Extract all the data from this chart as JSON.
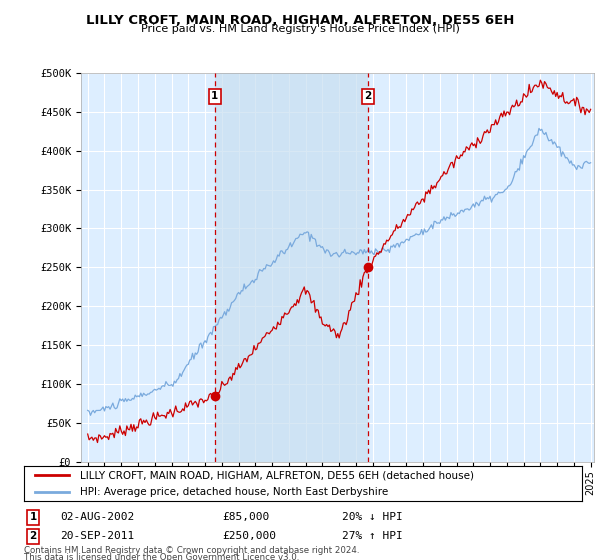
{
  "title": "LILLY CROFT, MAIN ROAD, HIGHAM, ALFRETON, DE55 6EH",
  "subtitle": "Price paid vs. HM Land Registry's House Price Index (HPI)",
  "ylabel_ticks": [
    "£0",
    "£50K",
    "£100K",
    "£150K",
    "£200K",
    "£250K",
    "£300K",
    "£350K",
    "£400K",
    "£450K",
    "£500K"
  ],
  "ytick_values": [
    0,
    50000,
    100000,
    150000,
    200000,
    250000,
    300000,
    350000,
    400000,
    450000,
    500000
  ],
  "ylim": [
    0,
    500000
  ],
  "xlim_start": 1994.6,
  "xlim_end": 2025.2,
  "xtick_years": [
    1995,
    1996,
    1997,
    1998,
    1999,
    2000,
    2001,
    2002,
    2003,
    2004,
    2005,
    2006,
    2007,
    2008,
    2009,
    2010,
    2011,
    2012,
    2013,
    2014,
    2015,
    2016,
    2017,
    2018,
    2019,
    2020,
    2021,
    2022,
    2023,
    2024,
    2025
  ],
  "sale1_year": 2002.58,
  "sale1_price": 85000,
  "sale1_label": "1",
  "sale1_date": "02-AUG-2002",
  "sale1_hpi_diff": "20% ↓ HPI",
  "sale2_year": 2011.72,
  "sale2_price": 250000,
  "sale2_label": "2",
  "sale2_date": "20-SEP-2011",
  "sale2_hpi_diff": "27% ↑ HPI",
  "hpi_color": "#7aaadd",
  "price_color": "#cc0000",
  "bg_color": "#ddeeff",
  "plot_bg": "#ddeeff",
  "grid_color": "#ffffff",
  "vline_color": "#cc0000",
  "shade_color": "#c8dff0",
  "legend_line1": "LILLY CROFT, MAIN ROAD, HIGHAM, ALFRETON, DE55 6EH (detached house)",
  "legend_line2": "HPI: Average price, detached house, North East Derbyshire",
  "footer1": "Contains HM Land Registry data © Crown copyright and database right 2024.",
  "footer2": "This data is licensed under the Open Government Licence v3.0."
}
